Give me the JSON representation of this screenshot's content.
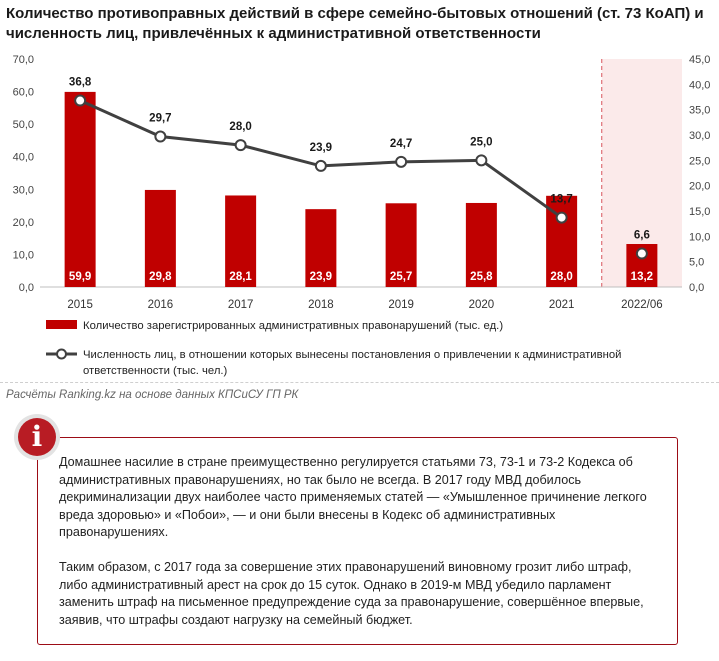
{
  "title_lines": [
    "Количество противоправных действий в сфере семейно-бытовых отношений (ст. 73 КоАП) и",
    "численность лиц, привлечённых к административной ответственности"
  ],
  "source": "Расчёты Ranking.kz на основе данных КПСиСУ ГП РК",
  "info_icon": "info-icon",
  "info_paragraphs": [
    "Домашнее насилие в стране преимущественно регулируется статьями 73, 73-1 и 73-2 Кодекса об административных правонарушениях, но так было не всегда. В 2017 году МВД добилось декриминализации двух наиболее часто применяемых статей — «Умышленное причинение легкого вреда здоровью» и «Побои», — и они были внесены в Кодекс об административных правонарушениях.",
    "Таким образом, с 2017 года за совершение этих правонарушений виновному грозит либо штраф, либо административный арест на срок до 15 суток. Однако в 2019-м МВД убедило парламент заменить штраф на письменное предупреждение суда за правонарушение, совершённое впервые, заявив, что штрафы создают нагрузку на семейный бюджет."
  ],
  "colors": {
    "bar": "#c00000",
    "line": "#404040",
    "accent": "#b81c24",
    "highlight": "#fbeaea"
  },
  "chart_data": {
    "type": "bar",
    "categories": [
      "2015",
      "2016",
      "2017",
      "2018",
      "2019",
      "2020",
      "2021",
      "2022/06"
    ],
    "ylim_left": [
      0,
      70
    ],
    "ylim_right": [
      0,
      45
    ],
    "left_ticks": [
      "0,0",
      "10,0",
      "20,0",
      "30,0",
      "40,0",
      "50,0",
      "60,0",
      "70,0"
    ],
    "right_ticks": [
      "0,0",
      "5,0",
      "10,0",
      "15,0",
      "20,0",
      "25,0",
      "30,0",
      "35,0",
      "40,0",
      "45,0"
    ],
    "highlight_category": "2022/06",
    "series": [
      {
        "name": "Количество зарегистрированных административных правонарушений (тыс. ед.)",
        "type": "bar",
        "axis": "left",
        "values": [
          59.9,
          29.8,
          28.1,
          23.9,
          25.7,
          25.8,
          28.0,
          13.2
        ],
        "labels": [
          "59,9",
          "29,8",
          "28,1",
          "23,9",
          "25,7",
          "25,8",
          "28,0",
          "13,2"
        ]
      },
      {
        "name": "Численность лиц, в отношении которых вынесены постановления о привлечении к административной ответственности (тыс. чел.)",
        "type": "line",
        "axis": "right",
        "values": [
          36.8,
          29.7,
          28.0,
          23.9,
          24.7,
          25.0,
          13.7,
          6.6
        ],
        "labels": [
          "36,8",
          "29,7",
          "28,0",
          "23,9",
          "24,7",
          "25,0",
          "13,7",
          "6,6"
        ]
      }
    ],
    "legend": {
      "placement": "bottom",
      "bar_label_lines": [
        "Количество зарегистрированных административных правонарушений (тыс. ед.)"
      ],
      "line_label_lines": [
        "Численность лиц, в отношении которых вынесены постановления о привлечении к административной",
        "ответственности (тыс. чел.)"
      ]
    }
  }
}
